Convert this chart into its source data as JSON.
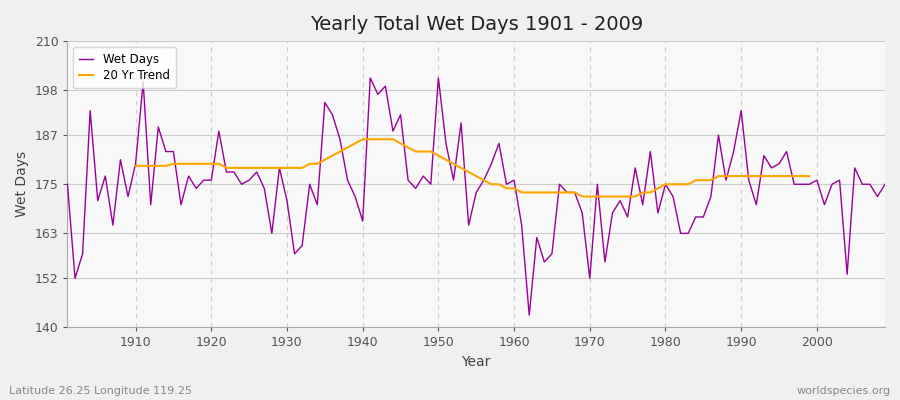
{
  "title": "Yearly Total Wet Days 1901 - 2009",
  "xlabel": "Year",
  "ylabel": "Wet Days",
  "subtitle_left": "Latitude 26.25 Longitude 119.25",
  "subtitle_right": "worldspecies.org",
  "xlim": [
    1901,
    2009
  ],
  "ylim": [
    140,
    210
  ],
  "yticks": [
    140,
    152,
    163,
    175,
    187,
    198,
    210
  ],
  "xticks": [
    1910,
    1920,
    1930,
    1940,
    1950,
    1960,
    1970,
    1980,
    1990,
    2000
  ],
  "line_color": "#990099",
  "trend_color": "#FFA500",
  "bg_color": "#f0f0f0",
  "plot_bg_color": "#f8f8f8",
  "years": [
    1901,
    1902,
    1903,
    1904,
    1905,
    1906,
    1907,
    1908,
    1909,
    1910,
    1911,
    1912,
    1913,
    1914,
    1915,
    1916,
    1917,
    1918,
    1919,
    1920,
    1921,
    1922,
    1923,
    1924,
    1925,
    1926,
    1927,
    1928,
    1929,
    1930,
    1931,
    1932,
    1933,
    1934,
    1935,
    1936,
    1937,
    1938,
    1939,
    1940,
    1941,
    1942,
    1943,
    1944,
    1945,
    1946,
    1947,
    1948,
    1949,
    1950,
    1951,
    1952,
    1953,
    1954,
    1955,
    1956,
    1957,
    1958,
    1959,
    1960,
    1961,
    1962,
    1963,
    1964,
    1965,
    1966,
    1967,
    1968,
    1969,
    1970,
    1971,
    1972,
    1973,
    1974,
    1975,
    1976,
    1977,
    1978,
    1979,
    1980,
    1981,
    1982,
    1983,
    1984,
    1985,
    1986,
    1987,
    1988,
    1989,
    1990,
    1991,
    1992,
    1993,
    1994,
    1995,
    1996,
    1997,
    1998,
    1999,
    2000,
    2001,
    2002,
    2003,
    2004,
    2005,
    2006,
    2007,
    2008,
    2009
  ],
  "wet_days": [
    175,
    152,
    158,
    193,
    171,
    177,
    165,
    181,
    172,
    180,
    200,
    170,
    189,
    183,
    183,
    170,
    177,
    174,
    176,
    176,
    188,
    178,
    178,
    175,
    176,
    178,
    174,
    163,
    179,
    171,
    158,
    160,
    175,
    170,
    195,
    192,
    186,
    176,
    172,
    166,
    201,
    197,
    199,
    188,
    192,
    176,
    174,
    177,
    175,
    201,
    185,
    176,
    190,
    165,
    173,
    176,
    180,
    185,
    175,
    176,
    165,
    143,
    162,
    156,
    158,
    175,
    173,
    173,
    168,
    152,
    175,
    156,
    168,
    171,
    167,
    179,
    170,
    183,
    168,
    175,
    172,
    163,
    163,
    167,
    167,
    172,
    187,
    176,
    183,
    193,
    176,
    170,
    182,
    179,
    180,
    183,
    175,
    175,
    175,
    176,
    170,
    175,
    176,
    153,
    179,
    175,
    175,
    172,
    175
  ],
  "trend_years": [
    1910,
    1911,
    1912,
    1913,
    1914,
    1915,
    1916,
    1917,
    1918,
    1919,
    1920,
    1921,
    1922,
    1923,
    1924,
    1925,
    1926,
    1927,
    1928,
    1929,
    1930,
    1931,
    1932,
    1933,
    1934,
    1935,
    1936,
    1937,
    1938,
    1939,
    1940,
    1941,
    1942,
    1943,
    1944,
    1945,
    1946,
    1947,
    1948,
    1949,
    1950,
    1951,
    1952,
    1953,
    1954,
    1955,
    1956,
    1957,
    1958,
    1959,
    1960,
    1961,
    1962,
    1963,
    1964,
    1965,
    1966,
    1967,
    1968,
    1969,
    1970,
    1971,
    1972,
    1973,
    1974,
    1975,
    1976,
    1977,
    1978,
    1979,
    1980,
    1981,
    1982,
    1983,
    1984,
    1985,
    1986,
    1987,
    1988,
    1989,
    1990,
    1991,
    1992,
    1993,
    1994,
    1995,
    1996,
    1997,
    1998,
    1999
  ],
  "trend_values": [
    179.5,
    179.5,
    179.5,
    179.5,
    179.5,
    180,
    180,
    180,
    180,
    180,
    180,
    180,
    179,
    179,
    179,
    179,
    179,
    179,
    179,
    179,
    179,
    179,
    179,
    180,
    180,
    181,
    182,
    183,
    184,
    185,
    186,
    186,
    186,
    186,
    186,
    185,
    184,
    183,
    183,
    183,
    182,
    181,
    180,
    179,
    178,
    177,
    176,
    175,
    175,
    174,
    174,
    173,
    173,
    173,
    173,
    173,
    173,
    173,
    173,
    172,
    172,
    172,
    172,
    172,
    172,
    172,
    172,
    173,
    173,
    174,
    175,
    175,
    175,
    175,
    176,
    176,
    176,
    177,
    177,
    177,
    177,
    177,
    177,
    177,
    177,
    177,
    177,
    177,
    177,
    177
  ]
}
